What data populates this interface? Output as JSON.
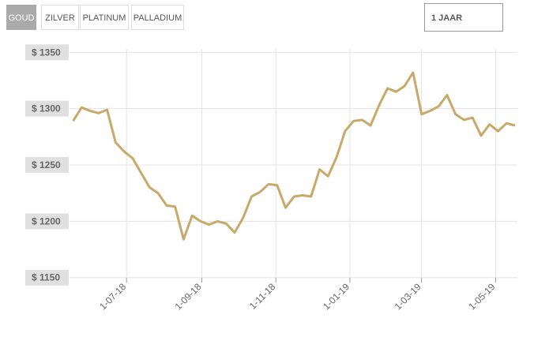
{
  "buttons": [
    "GOUD",
    "ZILVER",
    "PLATINUM",
    "PALLADIUM"
  ],
  "period": "1 JAAR",
  "chart_data": {
    "type": "line",
    "color": "#c8a96a",
    "x": [
      "2018-05-18",
      "2018-05-25",
      "2018-06-01",
      "2018-06-08",
      "2018-06-15",
      "2018-06-22",
      "2018-06-29",
      "2018-07-06",
      "2018-07-13",
      "2018-07-20",
      "2018-07-27",
      "2018-08-03",
      "2018-08-10",
      "2018-08-17",
      "2018-08-24",
      "2018-08-31",
      "2018-09-07",
      "2018-09-14",
      "2018-09-21",
      "2018-09-28",
      "2018-10-05",
      "2018-10-12",
      "2018-10-19",
      "2018-10-26",
      "2018-11-02",
      "2018-11-09",
      "2018-11-16",
      "2018-11-23",
      "2018-11-30",
      "2018-12-07",
      "2018-12-14",
      "2018-12-21",
      "2018-12-28",
      "2019-01-04",
      "2019-01-11",
      "2019-01-18",
      "2019-01-25",
      "2019-02-01",
      "2019-02-08",
      "2019-02-15",
      "2019-02-22",
      "2019-03-01",
      "2019-03-08",
      "2019-03-15",
      "2019-03-22",
      "2019-03-29",
      "2019-04-05",
      "2019-04-12",
      "2019-04-19",
      "2019-04-26",
      "2019-05-03",
      "2019-05-10",
      "2019-05-17"
    ],
    "values": [
      1289,
      1301,
      1298,
      1296,
      1299,
      1270,
      1262,
      1256,
      1243,
      1230,
      1225,
      1214,
      1213,
      1184,
      1205,
      1200,
      1197,
      1200,
      1198,
      1190,
      1203,
      1222,
      1226,
      1233,
      1232,
      1212,
      1222,
      1223,
      1222,
      1246,
      1240,
      1257,
      1280,
      1289,
      1290,
      1285,
      1303,
      1318,
      1315,
      1320,
      1332,
      1295,
      1298,
      1302,
      1312,
      1295,
      1290,
      1292,
      1276,
      1286,
      1280,
      1287,
      1285
    ],
    "xlim": [
      "2018-05-17",
      "2019-05-17"
    ],
    "xticks": [
      {
        "value": "2018-07-01",
        "label": "1-07-18"
      },
      {
        "value": "2018-09-01",
        "label": "1-09-18"
      },
      {
        "value": "2018-11-01",
        "label": "1-11-18"
      },
      {
        "value": "2019-01-01",
        "label": "1-01-19"
      },
      {
        "value": "2019-03-01",
        "label": "1-03-19"
      },
      {
        "value": "2019-05-01",
        "label": "1-05-19"
      }
    ],
    "ylim": [
      1140,
      1360
    ],
    "yticks": [
      {
        "value": 1150,
        "label": "$ 1150"
      },
      {
        "value": 1200,
        "label": "$ 1200"
      },
      {
        "value": 1250,
        "label": "$ 1250"
      },
      {
        "value": 1300,
        "label": "$ 1300"
      },
      {
        "value": 1350,
        "label": "$ 1350"
      }
    ],
    "grid": true
  }
}
